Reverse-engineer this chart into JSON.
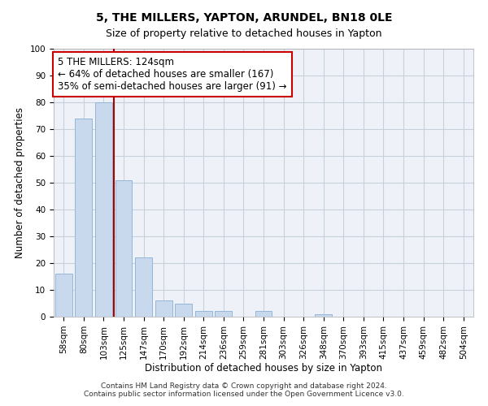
{
  "title": "5, THE MILLERS, YAPTON, ARUNDEL, BN18 0LE",
  "subtitle": "Size of property relative to detached houses in Yapton",
  "xlabel": "Distribution of detached houses by size in Yapton",
  "ylabel": "Number of detached properties",
  "bar_labels": [
    "58sqm",
    "80sqm",
    "103sqm",
    "125sqm",
    "147sqm",
    "170sqm",
    "192sqm",
    "214sqm",
    "236sqm",
    "259sqm",
    "281sqm",
    "303sqm",
    "326sqm",
    "348sqm",
    "370sqm",
    "393sqm",
    "415sqm",
    "437sqm",
    "459sqm",
    "482sqm",
    "504sqm"
  ],
  "bar_values": [
    16,
    74,
    80,
    51,
    22,
    6,
    5,
    2,
    2,
    0,
    2,
    0,
    0,
    1,
    0,
    0,
    0,
    0,
    0,
    0,
    0
  ],
  "bar_color": "#c8d9ee",
  "bar_edge_color": "#93b6d8",
  "property_line_color": "#aa0000",
  "annotation_text": "5 THE MILLERS: 124sqm\n← 64% of detached houses are smaller (167)\n35% of semi-detached houses are larger (91) →",
  "annotation_box_color": "#ffffff",
  "annotation_box_edge": "#cc0000",
  "ylim": [
    0,
    100
  ],
  "yticks": [
    0,
    10,
    20,
    30,
    40,
    50,
    60,
    70,
    80,
    90,
    100
  ],
  "grid_color": "#c8d0dc",
  "background_color": "#ffffff",
  "plot_bg_color": "#eef2f8",
  "footer_line1": "Contains HM Land Registry data © Crown copyright and database right 2024.",
  "footer_line2": "Contains public sector information licensed under the Open Government Licence v3.0.",
  "title_fontsize": 10,
  "subtitle_fontsize": 9,
  "xlabel_fontsize": 8.5,
  "ylabel_fontsize": 8.5,
  "tick_fontsize": 7.5,
  "annotation_fontsize": 8.5,
  "footer_fontsize": 6.5
}
